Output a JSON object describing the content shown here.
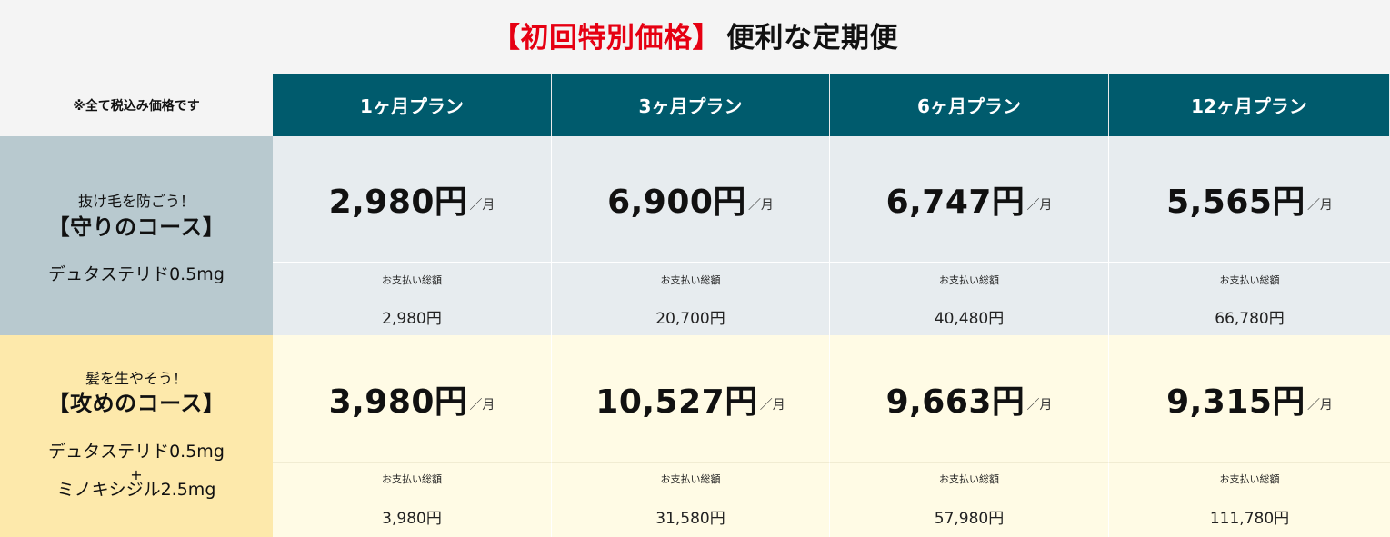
{
  "title": {
    "accent": "【初回特別価格】",
    "main": "便利な定期便"
  },
  "tax_note": "※全て税込み価格です",
  "plans": [
    {
      "label": "1ヶ月プラン"
    },
    {
      "label": "3ヶ月プラン"
    },
    {
      "label": "6ヶ月プラン"
    },
    {
      "label": "12ヶ月プラン"
    }
  ],
  "courses": [
    {
      "catch": "抜け毛を防ごう！",
      "name": "【守りのコース】",
      "drug_lines": [
        "デュタステリド0.5mg"
      ],
      "prices": [
        {
          "monthly": "2,980円",
          "unit": "／月",
          "total_label": "お支払い総額",
          "total": "2,980円"
        },
        {
          "monthly": "6,900円",
          "unit": "／月",
          "total_label": "お支払い総額",
          "total": "20,700円"
        },
        {
          "monthly": "6,747円",
          "unit": "／月",
          "total_label": "お支払い総額",
          "total": "40,480円"
        },
        {
          "monthly": "5,565円",
          "unit": "／月",
          "total_label": "お支払い総額",
          "total": "66,780円"
        }
      ]
    },
    {
      "catch": "髪を生やそう！",
      "name": "【攻めのコース】",
      "drug_lines": [
        "デュタステリド0.5mg",
        "+",
        "ミノキシジル2.5mg"
      ],
      "prices": [
        {
          "monthly": "3,980円",
          "unit": "／月",
          "total_label": "お支払い総額",
          "total": "3,980円"
        },
        {
          "monthly": "10,527円",
          "unit": "／月",
          "total_label": "お支払い総額",
          "total": "31,580円"
        },
        {
          "monthly": "9,663円",
          "unit": "／月",
          "total_label": "お支払い総額",
          "total": "57,980円"
        },
        {
          "monthly": "9,315円",
          "unit": "／月",
          "total_label": "お支払い総額",
          "total": "111,780円"
        }
      ]
    }
  ],
  "colors": {
    "accent_red": "#e60012",
    "header_teal": "#005b6d",
    "defense_label_bg": "#b8c9cf",
    "defense_cell_bg": "#e7ecef",
    "attack_label_bg": "#fde9ab",
    "attack_cell_bg": "#fffbe5"
  }
}
